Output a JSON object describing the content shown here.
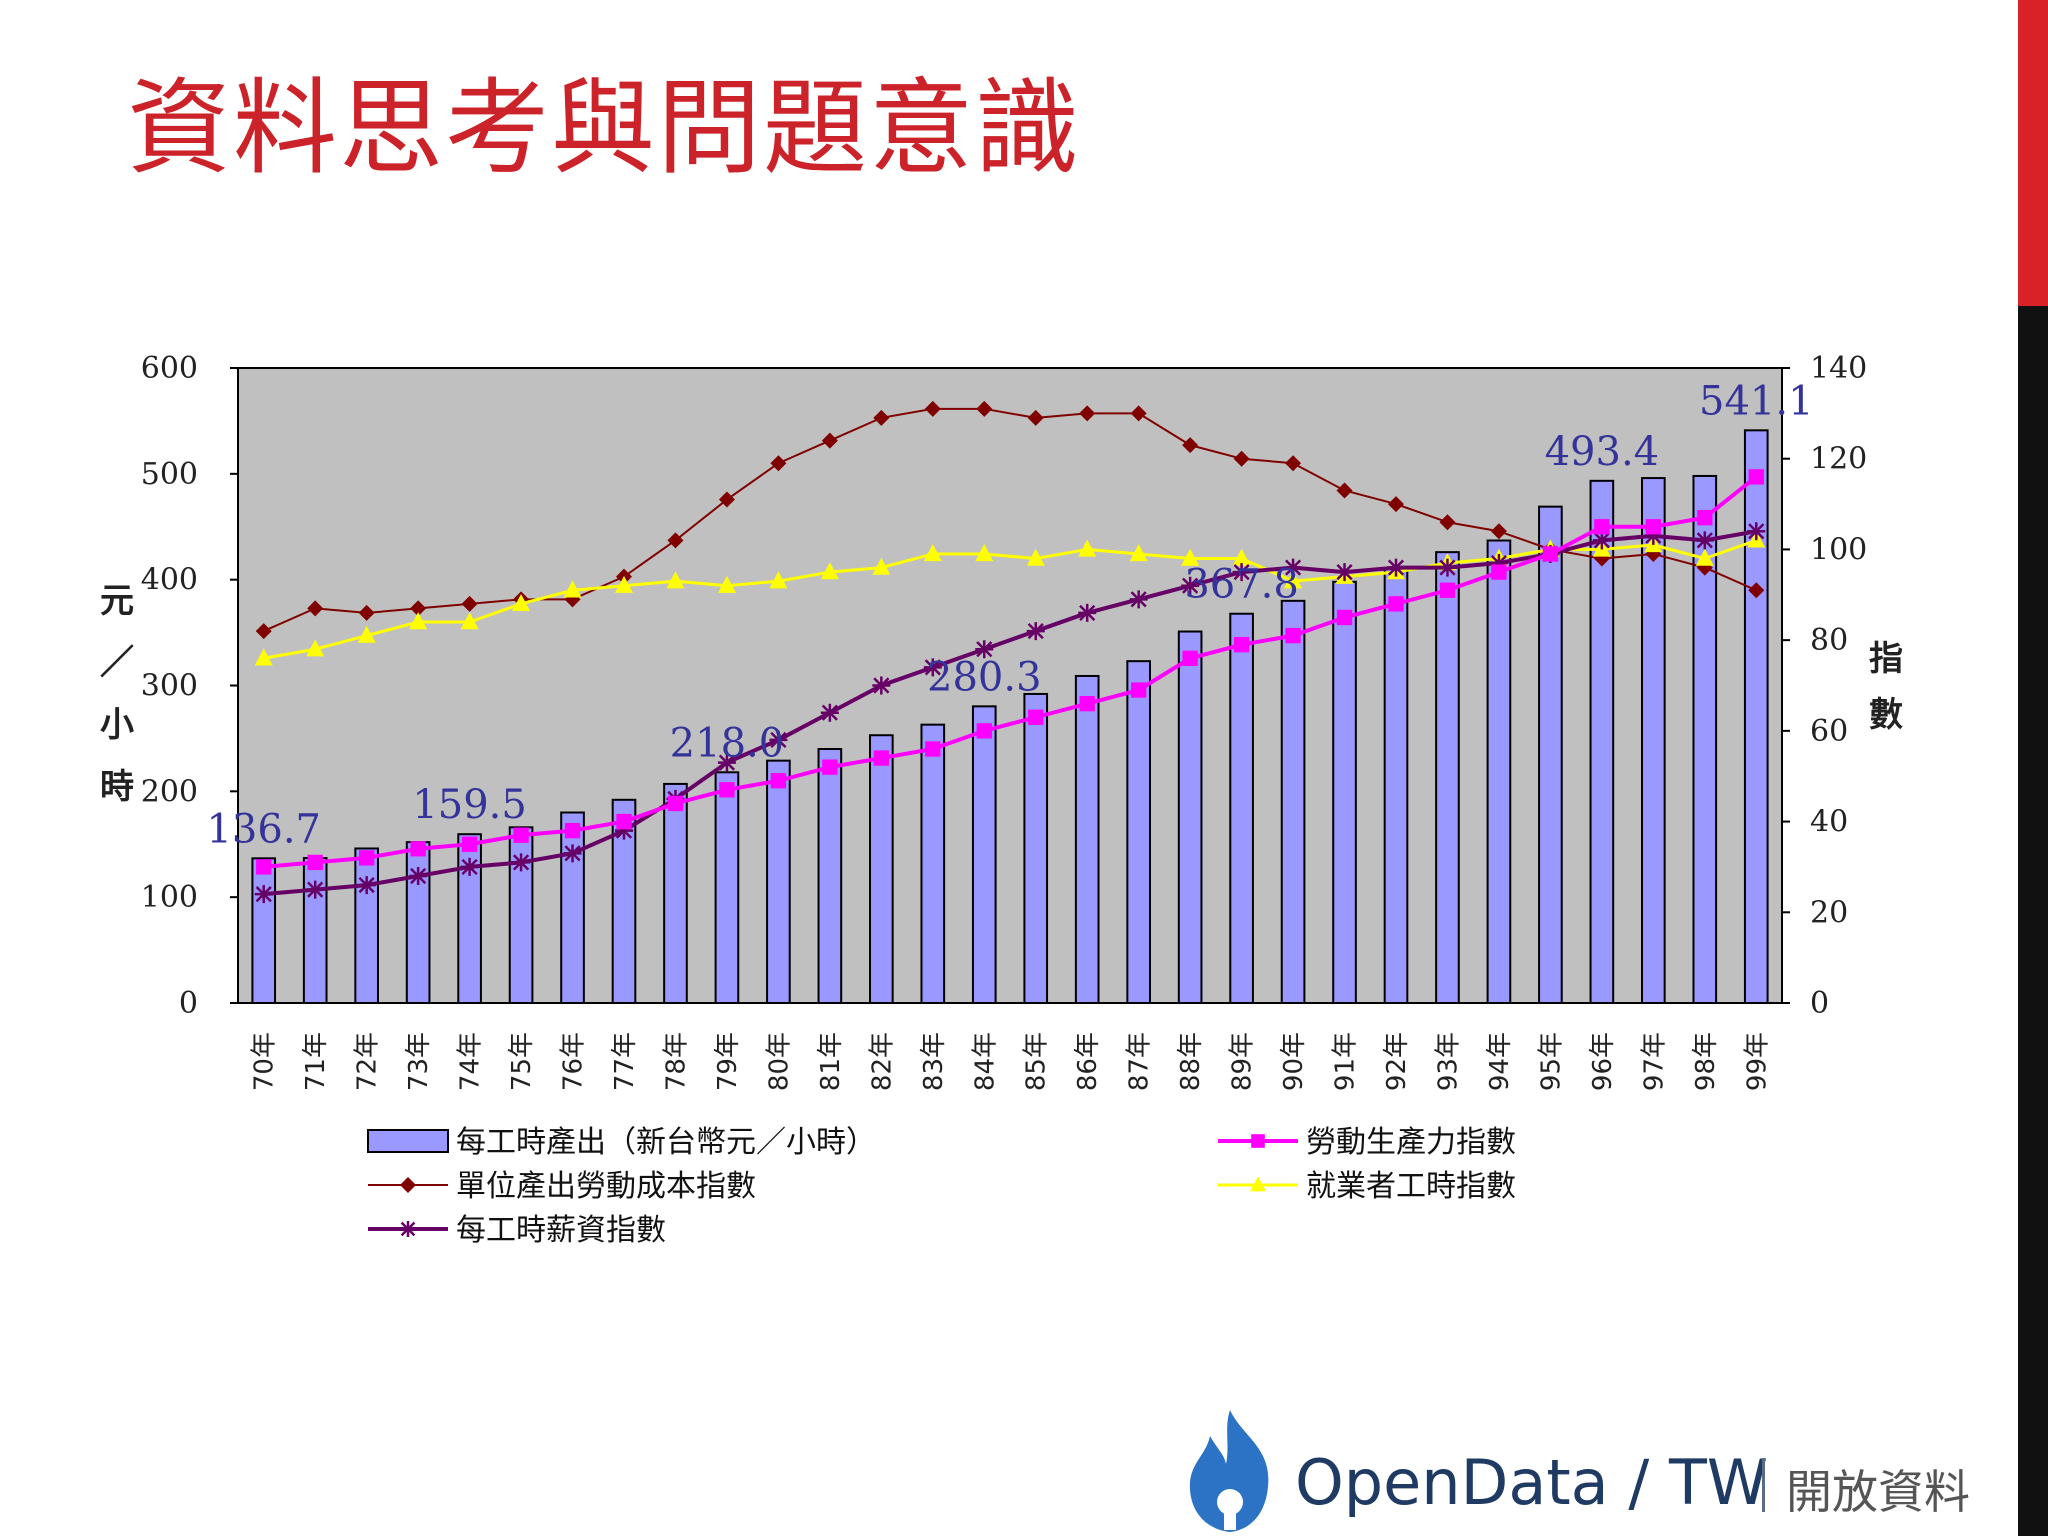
{
  "slide": {
    "title": "資料思考與問題意識",
    "title_color": "#cc2229",
    "accent_red": "#d92128",
    "accent_black": "#111111"
  },
  "logo": {
    "name": "OpenData / TW",
    "subtitle": "開放資料",
    "icon": "flame-icon",
    "icon_color": "#2d73c5"
  },
  "chart_data": {
    "type": "bar",
    "plot_background": "#c0c0c0",
    "grid": false,
    "legend_position": "bottom",
    "categories": [
      "70年",
      "71年",
      "72年",
      "73年",
      "74年",
      "75年",
      "76年",
      "77年",
      "78年",
      "79年",
      "80年",
      "81年",
      "82年",
      "83年",
      "84年",
      "85年",
      "86年",
      "87年",
      "88年",
      "89年",
      "90年",
      "91年",
      "92年",
      "93年",
      "94年",
      "95年",
      "96年",
      "97年",
      "98年",
      "99年"
    ],
    "y_left": {
      "label": "元／小時",
      "range": [
        0,
        600
      ],
      "ticks": [
        "0",
        "100",
        "200",
        "300",
        "400",
        "500",
        "600"
      ]
    },
    "y_right": {
      "label": "指數",
      "range": [
        0,
        140
      ],
      "ticks": [
        "0",
        "20",
        "40",
        "60",
        "80",
        "100",
        "120",
        "140"
      ]
    },
    "bars": {
      "name": "每工時產出（新台幣元／小時）",
      "axis": "left",
      "color": "#9999ff",
      "values": [
        136.7,
        137,
        146,
        152,
        159.5,
        166,
        180,
        192,
        207,
        218.0,
        229,
        240,
        253,
        263,
        280.3,
        292,
        309,
        323,
        351,
        367.8,
        380,
        398,
        410,
        426,
        437,
        469,
        493.4,
        496,
        498,
        541.1
      ]
    },
    "data_labels": [
      {
        "category": "70年",
        "text": "136.7"
      },
      {
        "category": "74年",
        "text": "159.5"
      },
      {
        "category": "79年",
        "text": "218.0"
      },
      {
        "category": "84年",
        "text": "280.3"
      },
      {
        "category": "89年",
        "text": "367.8"
      },
      {
        "category": "96年",
        "text": "493.4"
      },
      {
        "category": "99年",
        "text": "541.1"
      }
    ],
    "series": [
      {
        "name": "單位產出勞動成本指數",
        "axis": "right",
        "color": "#800000",
        "marker": "diamond",
        "values": [
          82,
          87,
          86,
          87,
          88,
          89,
          89,
          94,
          102,
          111,
          119,
          124,
          129,
          131,
          131,
          129,
          130,
          130,
          123,
          120,
          119,
          113,
          110,
          106,
          104,
          100,
          98,
          99,
          96,
          91
        ]
      },
      {
        "name": "就業者工時指數",
        "axis": "right",
        "color": "#ffff00",
        "marker": "triangle",
        "values": [
          76,
          78,
          81,
          84,
          84,
          88,
          91,
          92,
          93,
          92,
          93,
          95,
          96,
          99,
          99,
          98,
          100,
          99,
          98,
          98,
          93,
          94,
          95,
          97,
          98,
          100,
          100,
          101,
          98,
          102
        ]
      },
      {
        "name": "每工時薪資指數",
        "axis": "right",
        "color": "#660066",
        "marker": "star",
        "values": [
          24,
          25,
          26,
          28,
          30,
          31,
          33,
          38,
          45,
          53,
          58,
          64,
          70,
          74,
          78,
          82,
          86,
          89,
          92,
          95,
          96,
          95,
          96,
          96,
          97,
          99,
          102,
          103,
          102,
          104
        ]
      },
      {
        "name": "勞動生產力指數",
        "axis": "right",
        "color": "#ff00ff",
        "marker": "square",
        "values": [
          30,
          31,
          32,
          34,
          35,
          37,
          38,
          40,
          44,
          47,
          49,
          52,
          54,
          56,
          60,
          63,
          66,
          69,
          76,
          79,
          81,
          85,
          88,
          91,
          95,
          99,
          105,
          105,
          107,
          116
        ]
      }
    ],
    "legend_order": [
      "bars",
      "0",
      "3",
      "1",
      "2"
    ]
  }
}
